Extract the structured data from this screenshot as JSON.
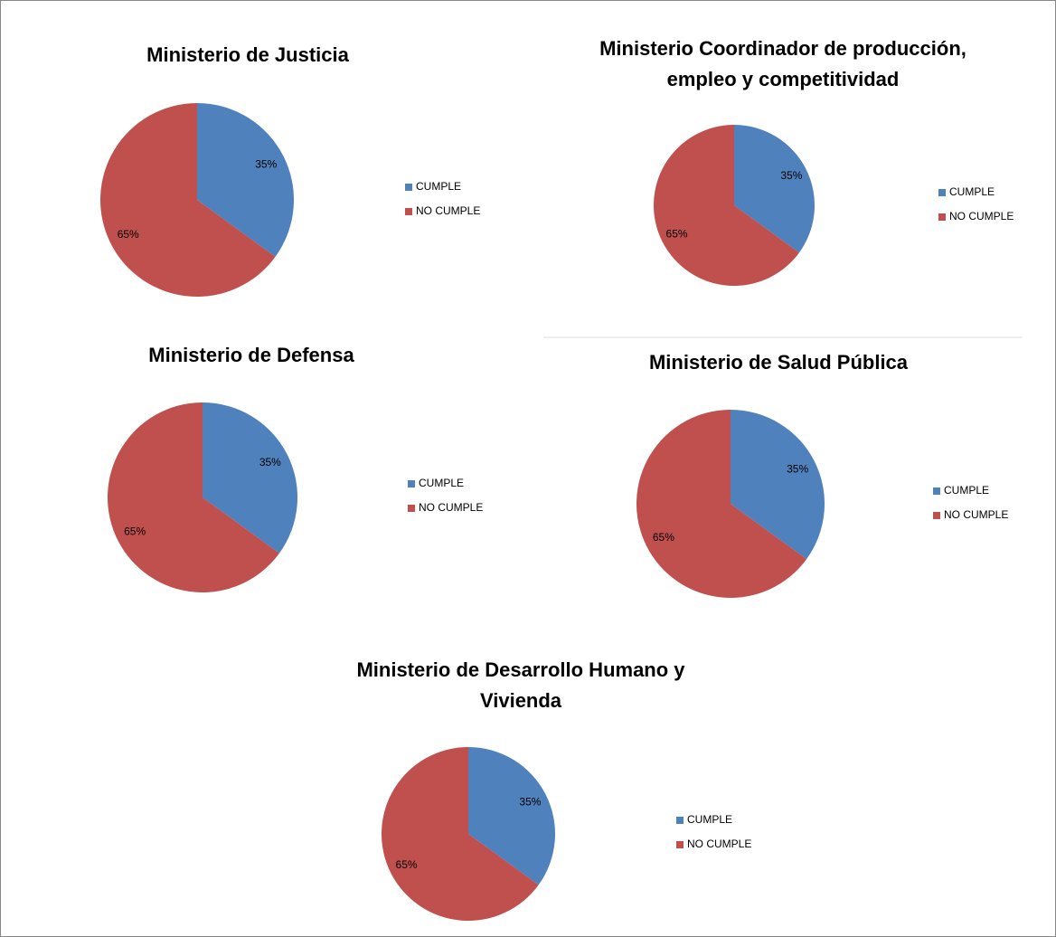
{
  "chart_data": [
    {
      "type": "pie",
      "title": "Ministerio de Justicia",
      "categories": [
        "CUMPLE",
        "NO CUMPLE"
      ],
      "values": [
        35,
        65
      ],
      "value_labels": [
        "35%",
        "65%"
      ],
      "colors": [
        "#4f81bd",
        "#c0504d"
      ]
    },
    {
      "type": "pie",
      "title": "Ministerio Coordinador de producción, empleo y competitividad",
      "categories": [
        "CUMPLE",
        "NO CUMPLE"
      ],
      "values": [
        35,
        65
      ],
      "value_labels": [
        "35%",
        "65%"
      ],
      "colors": [
        "#4f81bd",
        "#c0504d"
      ]
    },
    {
      "type": "pie",
      "title": "Ministerio de Defensa",
      "categories": [
        "CUMPLE",
        "NO CUMPLE"
      ],
      "values": [
        35,
        65
      ],
      "value_labels": [
        "35%",
        "65%"
      ],
      "colors": [
        "#4f81bd",
        "#c0504d"
      ]
    },
    {
      "type": "pie",
      "title": "Ministerio de Salud Pública",
      "categories": [
        "CUMPLE",
        "NO CUMPLE"
      ],
      "values": [
        35,
        65
      ],
      "value_labels": [
        "35%",
        "65%"
      ],
      "colors": [
        "#4f81bd",
        "#c0504d"
      ]
    },
    {
      "type": "pie",
      "title": "Ministerio de Desarrollo Humano y Vivienda",
      "categories": [
        "CUMPLE",
        "NO CUMPLE"
      ],
      "values": [
        35,
        65
      ],
      "value_labels": [
        "35%",
        "65%"
      ],
      "colors": [
        "#4f81bd",
        "#c0504d"
      ]
    }
  ]
}
